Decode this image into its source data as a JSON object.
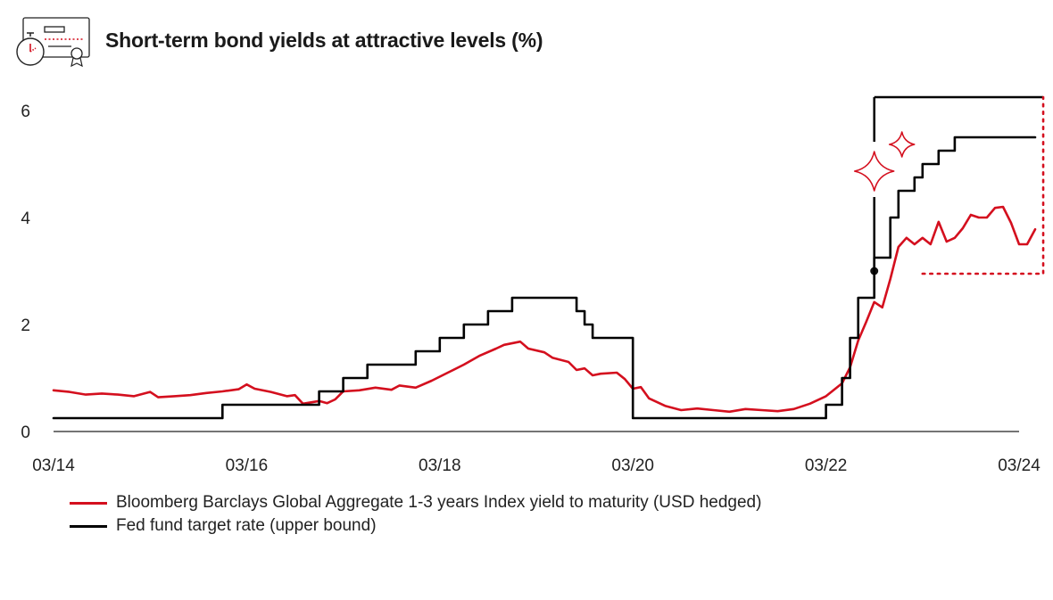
{
  "header": {
    "title": "Short-term bond yields at attractive levels (%)",
    "icon": "certificate-stopwatch-icon"
  },
  "colors": {
    "accent": "#d40f1e",
    "ink": "#000000",
    "axis": "#222222"
  },
  "chart_data": {
    "type": "line",
    "title": "Short-term bond yields at attractive levels (%)",
    "xlabel": "",
    "ylabel": "",
    "ylim": [
      0,
      6.3
    ],
    "yticks": [
      0,
      2,
      4,
      6
    ],
    "xlim": [
      "2014-03",
      "2024-03"
    ],
    "xticks": [
      "03/14",
      "03/16",
      "03/18",
      "03/20",
      "03/22",
      "03/24"
    ],
    "grid": false,
    "legend_position": "bottom-left",
    "series": [
      {
        "name": "Bloomberg Barclays Global Aggregate 1-3 years Index yield to maturity (USD hedged)",
        "color": "#d40f1e",
        "points": [
          [
            "2014-03",
            0.77
          ],
          [
            "2014-05",
            0.74
          ],
          [
            "2014-07",
            0.69
          ],
          [
            "2014-09",
            0.71
          ],
          [
            "2014-11",
            0.69
          ],
          [
            "2015-01",
            0.66
          ],
          [
            "2015-03",
            0.74
          ],
          [
            "2015-04",
            0.64
          ],
          [
            "2015-06",
            0.66
          ],
          [
            "2015-08",
            0.68
          ],
          [
            "2015-10",
            0.72
          ],
          [
            "2015-12",
            0.75
          ],
          [
            "2016-02",
            0.79
          ],
          [
            "2016-03",
            0.88
          ],
          [
            "2016-04",
            0.8
          ],
          [
            "2016-06",
            0.74
          ],
          [
            "2016-08",
            0.66
          ],
          [
            "2016-09",
            0.68
          ],
          [
            "2016-10",
            0.52
          ],
          [
            "2016-12",
            0.57
          ],
          [
            "2017-01",
            0.53
          ],
          [
            "2017-02",
            0.6
          ],
          [
            "2017-03",
            0.75
          ],
          [
            "2017-05",
            0.77
          ],
          [
            "2017-07",
            0.82
          ],
          [
            "2017-09",
            0.78
          ],
          [
            "2017-10",
            0.86
          ],
          [
            "2017-12",
            0.82
          ],
          [
            "2018-02",
            0.95
          ],
          [
            "2018-04",
            1.1
          ],
          [
            "2018-06",
            1.25
          ],
          [
            "2018-08",
            1.42
          ],
          [
            "2018-10",
            1.55
          ],
          [
            "2018-11",
            1.62
          ],
          [
            "2019-01",
            1.68
          ],
          [
            "2019-02",
            1.55
          ],
          [
            "2019-04",
            1.48
          ],
          [
            "2019-05",
            1.38
          ],
          [
            "2019-07",
            1.3
          ],
          [
            "2019-08",
            1.15
          ],
          [
            "2019-09",
            1.18
          ],
          [
            "2019-10",
            1.05
          ],
          [
            "2019-11",
            1.08
          ],
          [
            "2020-01",
            1.1
          ],
          [
            "2020-02",
            0.98
          ],
          [
            "2020-03",
            0.8
          ],
          [
            "2020-04",
            0.83
          ],
          [
            "2020-05",
            0.62
          ],
          [
            "2020-07",
            0.48
          ],
          [
            "2020-09",
            0.4
          ],
          [
            "2020-11",
            0.43
          ],
          [
            "2021-01",
            0.4
          ],
          [
            "2021-03",
            0.37
          ],
          [
            "2021-05",
            0.42
          ],
          [
            "2021-07",
            0.4
          ],
          [
            "2021-09",
            0.38
          ],
          [
            "2021-11",
            0.42
          ],
          [
            "2022-01",
            0.52
          ],
          [
            "2022-03",
            0.66
          ],
          [
            "2022-05",
            0.9
          ],
          [
            "2022-06",
            1.2
          ],
          [
            "2022-07",
            1.7
          ],
          [
            "2022-08",
            2.05
          ],
          [
            "2022-09",
            2.42
          ],
          [
            "2022-10",
            2.32
          ],
          [
            "2022-11",
            2.85
          ],
          [
            "2022-12",
            3.45
          ],
          [
            "2023-01",
            3.62
          ],
          [
            "2023-02",
            3.5
          ],
          [
            "2023-03",
            3.62
          ],
          [
            "2023-04",
            3.5
          ],
          [
            "2023-05",
            3.92
          ],
          [
            "2023-06",
            3.55
          ],
          [
            "2023-07",
            3.62
          ],
          [
            "2023-08",
            3.8
          ],
          [
            "2023-09",
            4.05
          ],
          [
            "2023-10",
            4.0
          ],
          [
            "2023-11",
            4.0
          ],
          [
            "2023-12",
            4.18
          ],
          [
            "2024-01",
            4.2
          ],
          [
            "2024-02",
            3.9
          ],
          [
            "2024-03",
            3.5
          ],
          [
            "2024-04",
            3.5
          ],
          [
            "2024-05",
            3.78
          ]
        ]
      },
      {
        "name": "Fed fund target rate (upper bound)",
        "color": "#000000",
        "step": true,
        "points": [
          [
            "2014-03",
            0.25
          ],
          [
            "2015-12",
            0.5
          ],
          [
            "2016-12",
            0.75
          ],
          [
            "2017-03",
            1.0
          ],
          [
            "2017-06",
            1.25
          ],
          [
            "2017-12",
            1.5
          ],
          [
            "2018-03",
            1.75
          ],
          [
            "2018-06",
            2.0
          ],
          [
            "2018-09",
            2.25
          ],
          [
            "2018-12",
            2.5
          ],
          [
            "2019-08",
            2.25
          ],
          [
            "2019-09",
            2.0
          ],
          [
            "2019-10",
            1.75
          ],
          [
            "2020-03",
            0.25
          ],
          [
            "2022-03",
            0.5
          ],
          [
            "2022-05",
            1.0
          ],
          [
            "2022-06",
            1.75
          ],
          [
            "2022-07",
            2.5
          ],
          [
            "2022-09",
            3.25
          ],
          [
            "2022-11",
            4.0
          ],
          [
            "2022-12",
            4.5
          ],
          [
            "2023-02",
            4.75
          ],
          [
            "2023-03",
            5.0
          ],
          [
            "2023-05",
            5.25
          ],
          [
            "2023-07",
            5.5
          ],
          [
            "2024-05",
            5.5
          ]
        ]
      }
    ],
    "annotations": [
      {
        "type": "bracket",
        "color": "#000000",
        "x": "2022-09",
        "y_low": 3.0,
        "y_high": 6.25,
        "x_end": "2024-06"
      },
      {
        "type": "dotted-bracket",
        "color": "#d40f1e",
        "x_start": "2023-03",
        "x_end": "2024-06",
        "y_low": 2.95,
        "y_high": 6.25
      },
      {
        "type": "sparkle-icons",
        "color": "#d40f1e"
      }
    ]
  }
}
